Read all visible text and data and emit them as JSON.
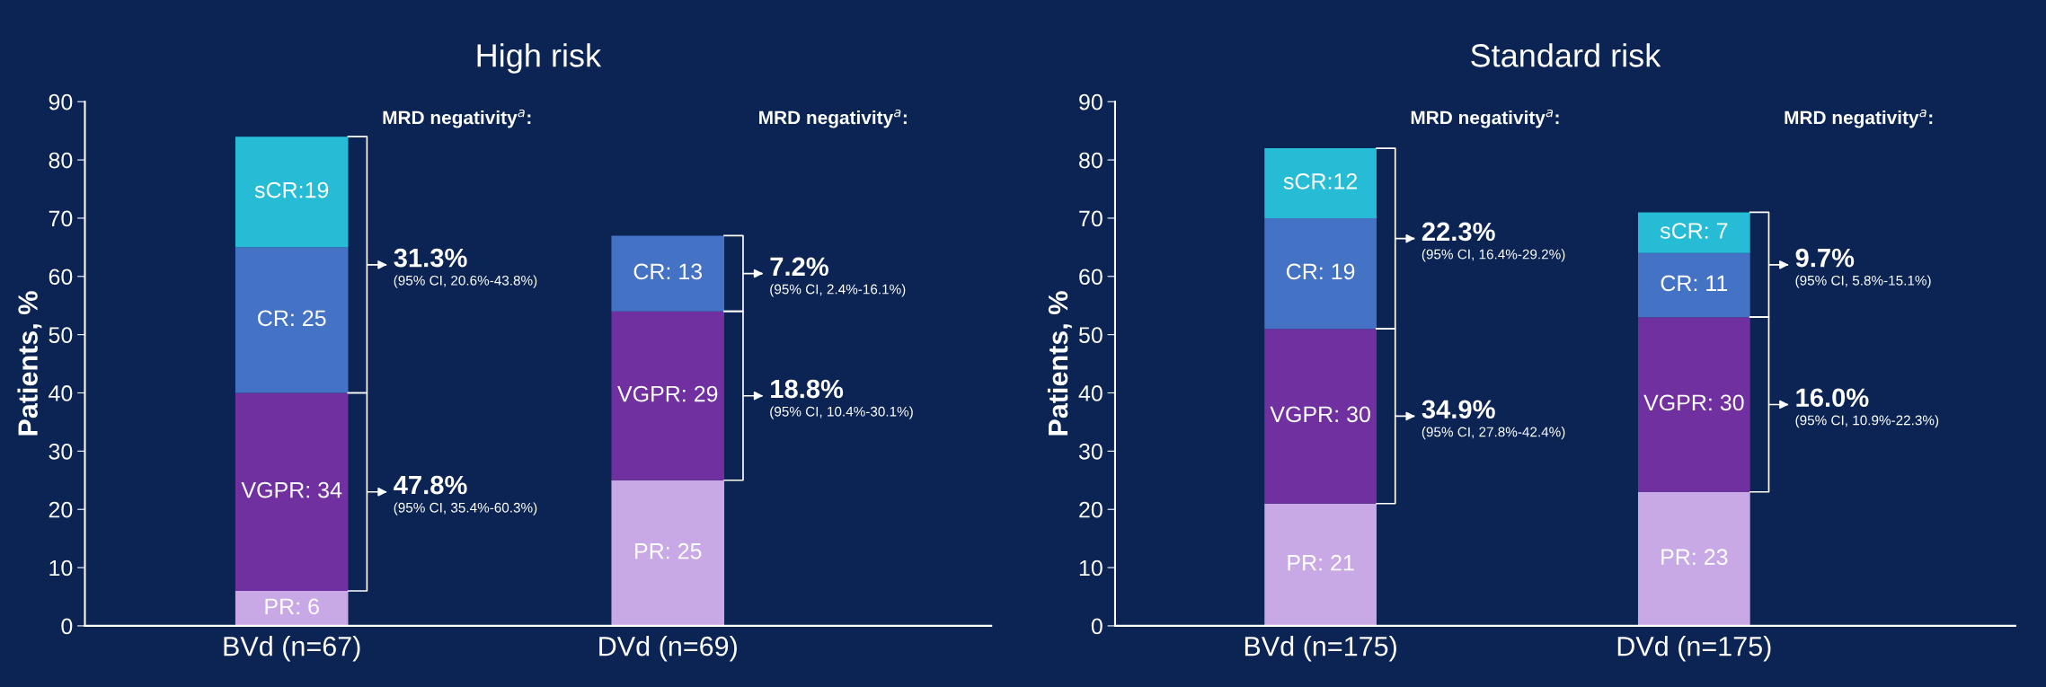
{
  "chart_data": [
    {
      "type": "bar",
      "title": "High risk",
      "ylabel": "Patients, %",
      "stacked": true,
      "categories": [
        "BVd (n=67)",
        "DVd (n=69)"
      ],
      "ylim": [
        0,
        90
      ],
      "yticks": [
        0,
        10,
        20,
        30,
        40,
        50,
        60,
        70,
        80,
        90
      ],
      "grid": false,
      "legend": false,
      "series": [
        {
          "color": "#c9a8e6",
          "values": [
            6,
            25
          ],
          "value_labels": [
            "PR: 6",
            "PR: 25"
          ]
        },
        {
          "color": "#7030a0",
          "values": [
            34,
            29
          ],
          "value_labels": [
            "VGPR: 34",
            "VGPR: 29"
          ]
        },
        {
          "color": "#4472c4",
          "values": [
            25,
            13
          ],
          "value_labels": [
            "CR: 25",
            "CR: 13"
          ]
        },
        {
          "color": "#27bcd6",
          "values": [
            19,
            null
          ],
          "value_labels": [
            "sCR:19",
            null
          ]
        }
      ],
      "annotations": [
        "MRD negativity$^{a}$:",
        "MRD negativity$^{a}$:",
        "31.3%",
        "(95% CI, 20.6%-43.8%)",
        "47.8%",
        "(95% CI, 35.4%-60.3%)",
        "7.2%",
        "(95% CI, 2.4%-16.1%)",
        "18.8%",
        "(95% CI, 10.4%-30.1%)"
      ]
    },
    {
      "type": "bar",
      "title": "Standard risk",
      "ylabel": "Patients, %",
      "stacked": true,
      "categories": [
        "BVd (n=175)",
        "DVd (n=175)"
      ],
      "ylim": [
        0,
        90
      ],
      "yticks": [
        0,
        10,
        20,
        30,
        40,
        50,
        60,
        70,
        80,
        90
      ],
      "grid": false,
      "legend": false,
      "series": [
        {
          "color": "#c9a8e6",
          "values": [
            21,
            23
          ],
          "value_labels": [
            "PR: 21",
            "PR: 23"
          ]
        },
        {
          "color": "#7030a0",
          "values": [
            30,
            30
          ],
          "value_labels": [
            "VGPR: 30",
            "VGPR: 30"
          ]
        },
        {
          "color": "#4472c4",
          "values": [
            19,
            11
          ],
          "value_labels": [
            "CR: 19",
            "CR: 11"
          ]
        },
        {
          "color": "#27bcd6",
          "values": [
            12,
            7
          ],
          "value_labels": [
            "sCR:12",
            "sCR: 7"
          ]
        }
      ],
      "annotations": [
        "MRD negativity$^{a}$:",
        "MRD negativity$^{a}$:",
        "22.3%",
        "(95% CI, 16.4%-29.2%)",
        "34.9%",
        "(95% CI, 27.8%-42.4%)",
        "9.7%",
        "(95% CI, 5.8%-15.1%)",
        "16.0%",
        "(95% CI, 10.9%-22.3%)"
      ]
    }
  ]
}
